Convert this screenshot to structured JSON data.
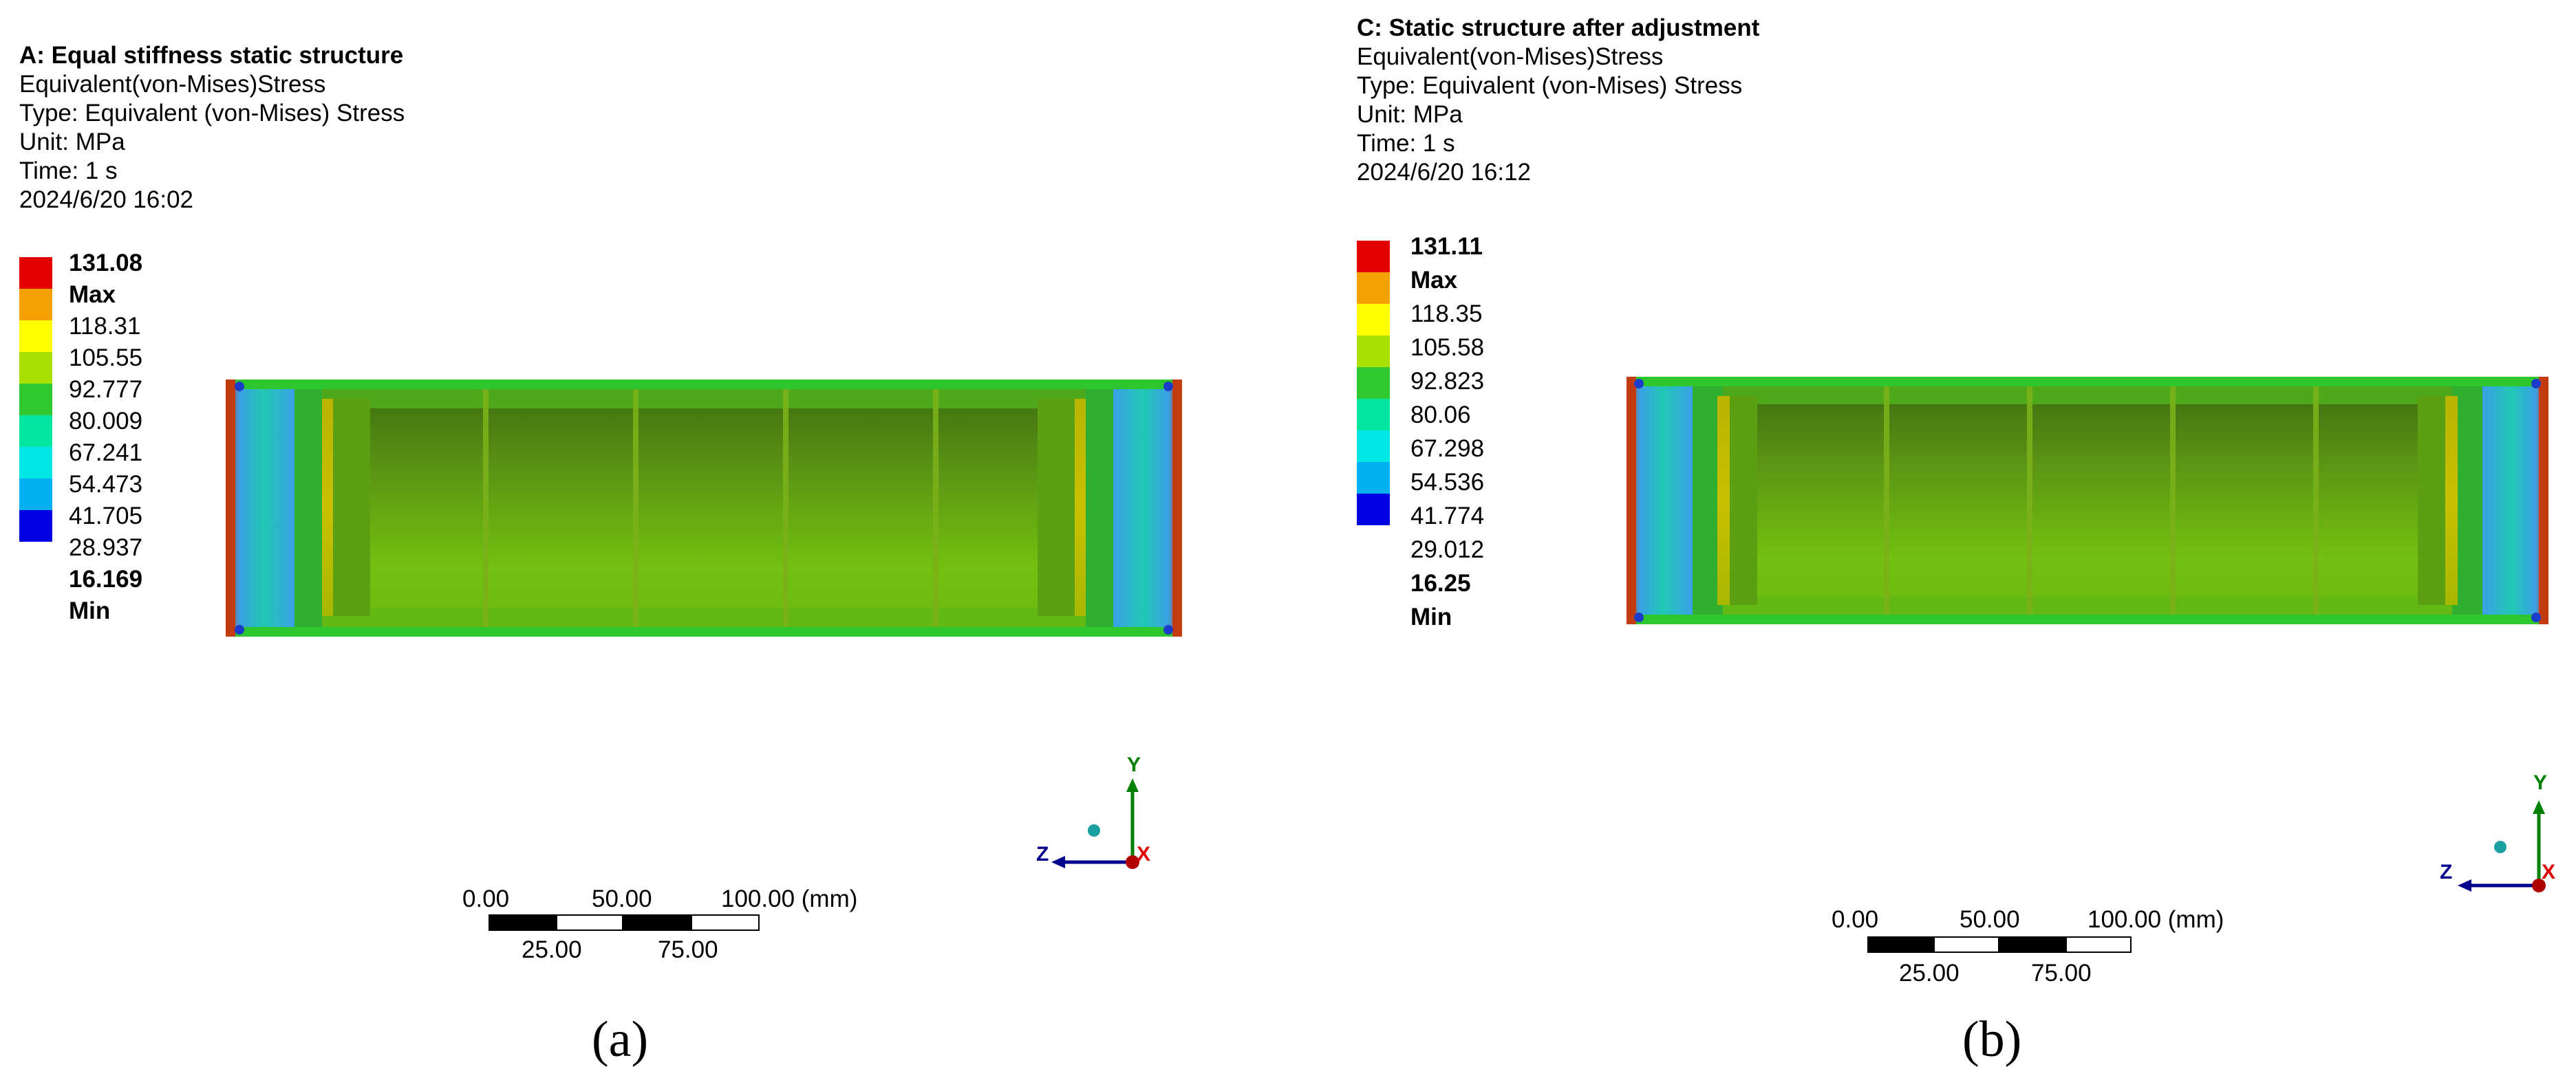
{
  "colors": {
    "legend": [
      "#e30000",
      "#f5a000",
      "#ffff00",
      "#a8e000",
      "#32c832",
      "#00e6a0",
      "#00e5e5",
      "#00b0f0",
      "#0000e0"
    ]
  },
  "panels": [
    {
      "id": "a",
      "title": "A: Equal stiffness static structure",
      "result": "Equivalent(von-Mises)Stress",
      "type": "Type: Equivalent (von-Mises) Stress",
      "unit": "Unit: MPa",
      "time": "Time: 1 s",
      "timestamp": "2024/6/20 16:02",
      "legend": [
        "131.08 Max",
        "118.31",
        "105.55",
        "92.777",
        "80.009",
        "67.241",
        "54.473",
        "41.705",
        "28.937",
        "16.169 Min"
      ],
      "triad": {
        "y": "Y",
        "z": "Z",
        "x": "X"
      },
      "scale": {
        "t0": "0.00",
        "t50": "50.00",
        "t100": "100.00 (mm)",
        "t25": "25.00",
        "t75": "75.00"
      },
      "caption": "(a)"
    },
    {
      "id": "b",
      "title": "C: Static structure after adjustment",
      "result": "Equivalent(von-Mises)Stress",
      "type": "Type: Equivalent (von-Mises) Stress",
      "unit": "Unit: MPa",
      "time": "Time: 1 s",
      "timestamp": "2024/6/20 16:12",
      "legend": [
        "131.11 Max",
        "118.35",
        "105.58",
        "92.823",
        "80.06",
        "67.298",
        "54.536",
        "41.774",
        "29.012",
        "16.25 Min"
      ],
      "triad": {
        "y": "Y",
        "z": "Z",
        "x": "X"
      },
      "scale": {
        "t0": "0.00",
        "t50": "50.00",
        "t100": "100.00 (mm)",
        "t25": "25.00",
        "t75": "75.00"
      },
      "caption": "(b)"
    }
  ]
}
